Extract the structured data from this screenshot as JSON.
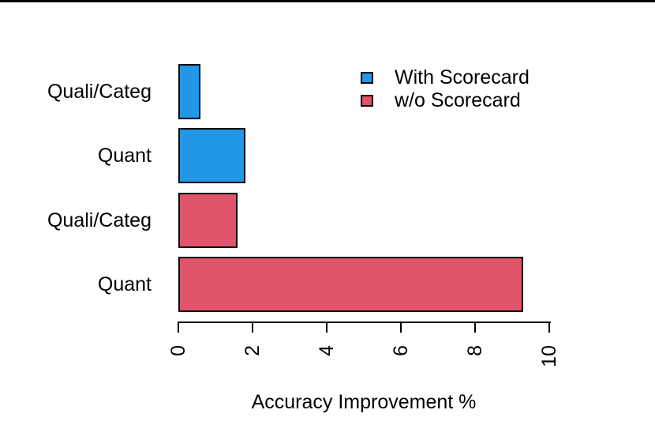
{
  "figure": {
    "background": "#ffffff",
    "top_border_color": "#000000"
  },
  "chart_data": {
    "type": "bar",
    "orientation": "horizontal",
    "title": "",
    "xlabel": "Accuracy Improvement %",
    "ylabel": "",
    "xlim": [
      0,
      10
    ],
    "x_ticks": [
      0,
      2,
      4,
      6,
      8,
      10
    ],
    "x_tick_labels": [
      "0",
      "2",
      "4",
      "6",
      "8",
      "10"
    ],
    "grid": false,
    "bar_border_color": "#000000",
    "bars": [
      {
        "category": "Quali/Categ",
        "series": "With Scorecard",
        "value": 0.6,
        "color": "#2297E6"
      },
      {
        "category": "Quant",
        "series": "With Scorecard",
        "value": 1.8,
        "color": "#2297E6"
      },
      {
        "category": "Quali/Categ",
        "series": "w/o Scorecard",
        "value": 1.6,
        "color": "#DF536B"
      },
      {
        "category": "Quant",
        "series": "w/o Scorecard",
        "value": 9.3,
        "color": "#DF536B"
      }
    ],
    "legend": {
      "position": "top-right",
      "items": [
        {
          "label": "With Scorecard",
          "color": "#2297E6"
        },
        {
          "label": "w/o Scorecard",
          "color": "#DF536B"
        }
      ]
    }
  }
}
